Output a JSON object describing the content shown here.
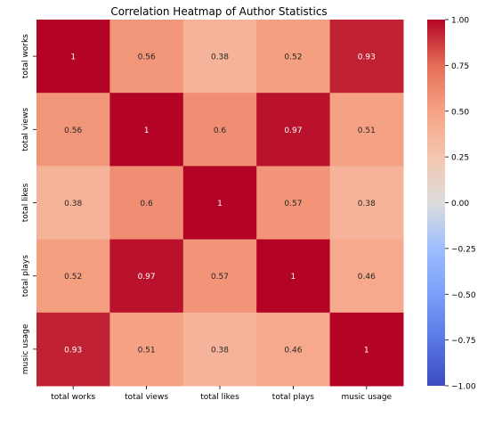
{
  "chart_data": {
    "type": "heatmap",
    "title": "Correlation Heatmap of Author Statistics",
    "xlabel": "",
    "ylabel": "",
    "x_categories": [
      "total works",
      "total views",
      "total likes",
      "total plays",
      "music usage"
    ],
    "y_categories": [
      "total works",
      "total views",
      "total likes",
      "total plays",
      "music usage"
    ],
    "values": [
      [
        1,
        0.56,
        0.38,
        0.52,
        0.93
      ],
      [
        0.56,
        1,
        0.6,
        0.97,
        0.51
      ],
      [
        0.38,
        0.6,
        1,
        0.57,
        0.38
      ],
      [
        0.52,
        0.97,
        0.57,
        1,
        0.46
      ],
      [
        0.93,
        0.51,
        0.38,
        0.46,
        1
      ]
    ],
    "annotations": [
      [
        "1",
        "0.56",
        "0.38",
        "0.52",
        "0.93"
      ],
      [
        "0.56",
        "1",
        "0.6",
        "0.97",
        "0.51"
      ],
      [
        "0.38",
        "0.6",
        "1",
        "0.57",
        "0.38"
      ],
      [
        "0.52",
        "0.97",
        "0.57",
        "1",
        "0.46"
      ],
      [
        "0.93",
        "0.51",
        "0.38",
        "0.46",
        "1"
      ]
    ],
    "colormap": "coolwarm",
    "vmin": -1,
    "vmax": 1,
    "colorbar": {
      "ticks": [
        1,
        0.75,
        0.5,
        0.25,
        0,
        -0.25,
        -0.5,
        -0.75,
        -1
      ],
      "tick_labels": [
        "1.00",
        "0.75",
        "0.50",
        "0.25",
        "0.00",
        "−0.25",
        "−0.50",
        "−0.75",
        "−1.00"
      ]
    }
  }
}
